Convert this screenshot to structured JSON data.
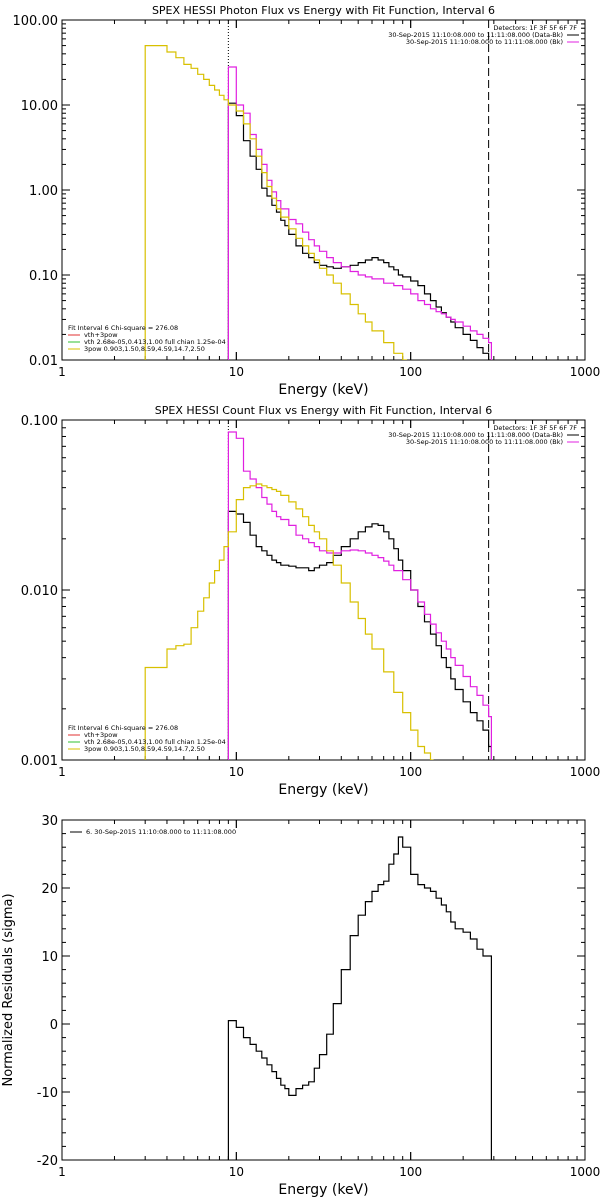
{
  "chart_data": [
    {
      "type": "line",
      "title": "SPEX HESSI Photon Flux vs Energy with Fit Function, Interval 6",
      "xlabel": "Energy (keV)",
      "ylabel": "",
      "xscale": "log",
      "yscale": "log",
      "xlim": [
        1,
        1000
      ],
      "ylim": [
        0.01,
        100
      ],
      "xticks": [
        "1",
        "10",
        "100",
        "1000"
      ],
      "yticks": [
        "0.01",
        "0.10",
        "1.00",
        "10.00",
        "100.00"
      ],
      "legend_topright": [
        "Detectors: 1F 3F 5F 6F 7F",
        "30-Sep-2015 11:10:08.000 to 11:11:08.000 (Data-Bk)",
        "30-Sep-2015 11:10:08.000 to 11:11:08.000 (Bk)"
      ],
      "legend_bottomleft": [
        "Fit Interval 6   Chi-square = 276.08",
        "vth+3pow",
        "vth 2.68e-05,0.413,1.00  full chian 1.25e-04",
        "3pow 0.903,1.50,8.59,4.59,14.7,2.50"
      ],
      "vlines": [
        9,
        280
      ],
      "grid": false,
      "series": [
        {
          "name": "Data-Bk",
          "color": "#000000",
          "x": [
            9,
            10,
            11,
            12,
            13,
            14,
            15,
            16,
            17,
            18,
            19,
            20,
            22,
            24,
            26,
            28,
            30,
            33,
            36,
            40,
            45,
            50,
            55,
            60,
            65,
            70,
            75,
            80,
            85,
            90,
            100,
            110,
            120,
            130,
            140,
            150,
            160,
            170,
            180,
            200,
            220,
            240,
            260,
            280
          ],
          "values": [
            10.5,
            7.5,
            3.8,
            2.5,
            1.75,
            1.05,
            0.85,
            0.66,
            0.55,
            0.44,
            0.38,
            0.3,
            0.22,
            0.18,
            0.16,
            0.14,
            0.13,
            0.125,
            0.12,
            0.125,
            0.13,
            0.14,
            0.15,
            0.16,
            0.15,
            0.14,
            0.125,
            0.115,
            0.1,
            0.095,
            0.085,
            0.075,
            0.06,
            0.05,
            0.042,
            0.036,
            0.032,
            0.028,
            0.024,
            0.02,
            0.017,
            0.014,
            0.012,
            0.01
          ]
        },
        {
          "name": "Bk",
          "color": "#e020e0",
          "x": [
            9,
            10,
            11,
            12,
            13,
            14,
            15,
            16,
            17,
            18,
            20,
            22,
            24,
            26,
            28,
            30,
            33,
            36,
            40,
            45,
            50,
            55,
            60,
            70,
            80,
            90,
            100,
            110,
            120,
            130,
            140,
            150,
            160,
            170,
            180,
            200,
            220,
            240,
            260,
            280
          ],
          "values": [
            28,
            10,
            8,
            4.5,
            3,
            2,
            1.3,
            0.95,
            0.75,
            0.6,
            0.45,
            0.4,
            0.32,
            0.26,
            0.22,
            0.19,
            0.16,
            0.14,
            0.125,
            0.11,
            0.1,
            0.095,
            0.09,
            0.08,
            0.075,
            0.068,
            0.06,
            0.05,
            0.045,
            0.04,
            0.037,
            0.035,
            0.032,
            0.03,
            0.028,
            0.025,
            0.022,
            0.02,
            0.018,
            0.016
          ]
        },
        {
          "name": "vth+3pow",
          "color": "#d8c000",
          "x": [
            3,
            3.5,
            4,
            4.5,
            5,
            5.5,
            6,
            6.5,
            7,
            7.5,
            8,
            8.5,
            9,
            10,
            11,
            12,
            13,
            14,
            15,
            16,
            17,
            18,
            20,
            22,
            24,
            26,
            28,
            30,
            33,
            36,
            40,
            45,
            50,
            55,
            60,
            70,
            80,
            90
          ],
          "values": [
            50,
            50,
            42,
            36,
            30,
            27,
            23,
            20,
            17,
            15,
            13,
            11.5,
            10,
            8.5,
            6,
            4,
            2.5,
            1.6,
            1.1,
            0.8,
            0.6,
            0.48,
            0.35,
            0.27,
            0.22,
            0.18,
            0.15,
            0.12,
            0.1,
            0.08,
            0.06,
            0.045,
            0.035,
            0.028,
            0.022,
            0.016,
            0.012,
            0.01
          ]
        }
      ]
    },
    {
      "type": "line",
      "title": "SPEX HESSI Count Flux vs Energy with Fit Function, Interval 6",
      "xlabel": "Energy (keV)",
      "ylabel": "",
      "xscale": "log",
      "yscale": "log",
      "xlim": [
        1,
        1000
      ],
      "ylim": [
        0.001,
        0.1
      ],
      "xticks": [
        "1",
        "10",
        "100",
        "1000"
      ],
      "yticks": [
        "0.001",
        "0.010",
        "0.100"
      ],
      "legend_topright": [
        "Detectors: 1F 3F 5F 6F 7F",
        "30-Sep-2015 11:10:08.000 to 11:11:08.000 (Data-Bk)",
        "30-Sep-2015 11:10:08.000 to 11:11:08.000 (Bk)"
      ],
      "legend_bottomleft": [
        "Fit Interval 6   Chi-square = 276.08",
        "vth+3pow",
        "vth 2.68e-05,0.413,1.00  full chian 1.25e-04",
        "3pow 0.903,1.50,8.59,4.59,14.7,2.50"
      ],
      "vlines": [
        9,
        280
      ],
      "grid": false,
      "series": [
        {
          "name": "Data-Bk",
          "color": "#000000",
          "x": [
            9,
            10,
            11,
            12,
            13,
            14,
            15,
            16,
            17,
            18,
            20,
            22,
            24,
            26,
            28,
            30,
            33,
            36,
            40,
            45,
            50,
            55,
            60,
            65,
            70,
            75,
            80,
            85,
            90,
            100,
            110,
            120,
            130,
            140,
            150,
            160,
            170,
            180,
            200,
            220,
            240,
            260,
            280
          ],
          "values": [
            0.029,
            0.028,
            0.025,
            0.021,
            0.018,
            0.017,
            0.016,
            0.015,
            0.0145,
            0.014,
            0.0138,
            0.0135,
            0.0135,
            0.013,
            0.0135,
            0.014,
            0.0145,
            0.016,
            0.018,
            0.02,
            0.022,
            0.0235,
            0.0245,
            0.024,
            0.022,
            0.02,
            0.0175,
            0.015,
            0.013,
            0.01,
            0.008,
            0.0065,
            0.0055,
            0.0047,
            0.004,
            0.0035,
            0.003,
            0.0026,
            0.0022,
            0.0019,
            0.0017,
            0.0015,
            0.0012
          ]
        },
        {
          "name": "Bk",
          "color": "#e020e0",
          "x": [
            9,
            10,
            11,
            12,
            13,
            14,
            15,
            16,
            17,
            18,
            20,
            22,
            24,
            26,
            28,
            30,
            33,
            36,
            40,
            45,
            50,
            55,
            60,
            65,
            70,
            75,
            80,
            90,
            100,
            110,
            120,
            130,
            140,
            150,
            160,
            170,
            180,
            200,
            220,
            240,
            260,
            280
          ],
          "values": [
            0.085,
            0.078,
            0.05,
            0.045,
            0.04,
            0.035,
            0.032,
            0.029,
            0.027,
            0.026,
            0.024,
            0.021,
            0.02,
            0.019,
            0.018,
            0.017,
            0.0165,
            0.0165,
            0.017,
            0.0172,
            0.017,
            0.0165,
            0.016,
            0.0155,
            0.0148,
            0.014,
            0.013,
            0.0115,
            0.01,
            0.0085,
            0.0072,
            0.0063,
            0.0056,
            0.005,
            0.0045,
            0.004,
            0.0036,
            0.0031,
            0.0027,
            0.0024,
            0.0021,
            0.0018
          ]
        },
        {
          "name": "vth+3pow",
          "color": "#d8c000",
          "x": [
            3,
            3.5,
            4,
            4.5,
            5,
            5.5,
            6,
            6.5,
            7,
            7.5,
            8,
            8.5,
            9,
            10,
            11,
            12,
            13,
            14,
            15,
            16,
            17,
            18,
            20,
            22,
            24,
            26,
            28,
            30,
            33,
            36,
            40,
            45,
            50,
            55,
            60,
            70,
            80,
            90,
            100,
            110,
            120,
            130
          ],
          "values": [
            0.0035,
            0.0035,
            0.0045,
            0.0047,
            0.0048,
            0.006,
            0.0075,
            0.009,
            0.011,
            0.013,
            0.015,
            0.018,
            0.022,
            0.034,
            0.04,
            0.041,
            0.042,
            0.041,
            0.04,
            0.039,
            0.038,
            0.036,
            0.033,
            0.03,
            0.027,
            0.024,
            0.022,
            0.02,
            0.017,
            0.014,
            0.011,
            0.0085,
            0.0068,
            0.0055,
            0.0045,
            0.0033,
            0.0025,
            0.0019,
            0.0015,
            0.0012,
            0.0011,
            0.001
          ]
        }
      ]
    },
    {
      "type": "line",
      "title": "",
      "xlabel": "Energy (keV)",
      "ylabel": "Normalized Residuals (sigma)",
      "xscale": "log",
      "yscale": "linear",
      "xlim": [
        1,
        1000
      ],
      "ylim": [
        -20,
        30
      ],
      "xticks": [
        "1",
        "10",
        "100",
        "1000"
      ],
      "yticks": [
        "-20",
        "-10",
        "0",
        "10",
        "20",
        "30"
      ],
      "legend_topleft": [
        "6. 30-Sep-2015 11:10:08.000 to 11:11:08.000"
      ],
      "grid": false,
      "series": [
        {
          "name": "6. 30-Sep-2015 11:10:08.000 to 11:11:08.000",
          "color": "#000000",
          "x": [
            9,
            10,
            11,
            12,
            13,
            14,
            15,
            16,
            17,
            18,
            19,
            20,
            22,
            24,
            26,
            28,
            30,
            33,
            36,
            40,
            45,
            50,
            55,
            60,
            65,
            70,
            75,
            80,
            85,
            90,
            100,
            110,
            120,
            130,
            140,
            150,
            160,
            170,
            180,
            200,
            220,
            240,
            260,
            280
          ],
          "values": [
            0.5,
            -0.5,
            -2,
            -3,
            -4,
            -5,
            -6,
            -7,
            -8,
            -9,
            -9.5,
            -10.5,
            -9.5,
            -9,
            -8.5,
            -6.5,
            -4.5,
            -1.5,
            3,
            8,
            13,
            16,
            18,
            19.5,
            20.5,
            21,
            23.5,
            25,
            27.5,
            26,
            22,
            20.5,
            20,
            19.5,
            18.5,
            17.5,
            16.5,
            15,
            14,
            13.5,
            12.5,
            11,
            10,
            10
          ]
        }
      ]
    }
  ]
}
